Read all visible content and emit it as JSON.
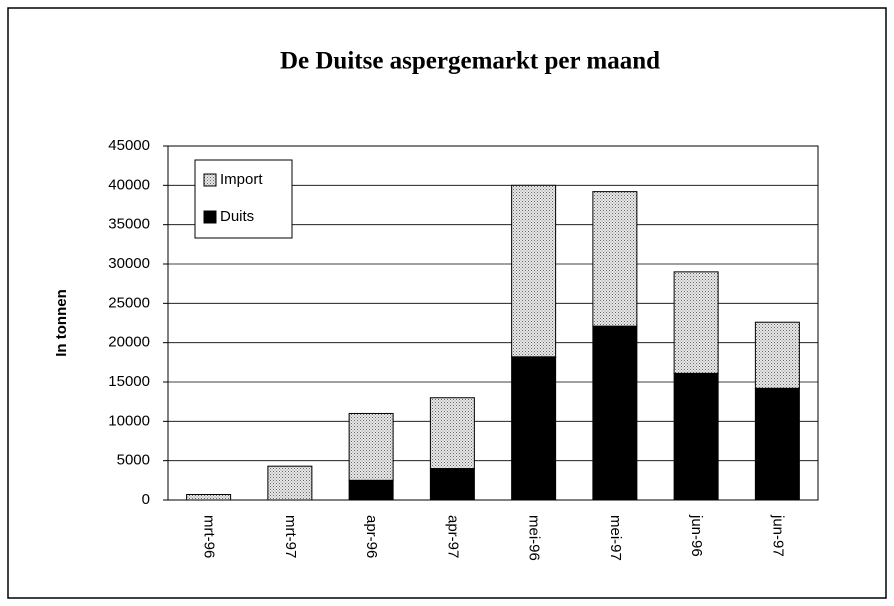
{
  "chart_data": {
    "type": "stacked-bar",
    "title": "De Duitse aspergemarkt per maand",
    "y_label": "In tonnen",
    "categories": [
      "mrt-96",
      "mrt-97",
      "apr-96",
      "apr-97",
      "mei-96",
      "mei-97",
      "jun-96",
      "jun-97"
    ],
    "series": [
      {
        "name": "Duits",
        "color": "#000000",
        "values": [
          0,
          0,
          2500,
          4000,
          18200,
          22100,
          16100,
          14200
        ]
      },
      {
        "name": "Import",
        "color": "#bdbdbd",
        "values": [
          700,
          4300,
          8500,
          9000,
          21800,
          17100,
          12900,
          8400
        ]
      }
    ],
    "ylim": [
      0,
      45000
    ],
    "yticks": [
      0,
      5000,
      10000,
      15000,
      20000,
      25000,
      30000,
      35000,
      40000,
      45000
    ],
    "grid": true,
    "legend": "upper-left"
  }
}
